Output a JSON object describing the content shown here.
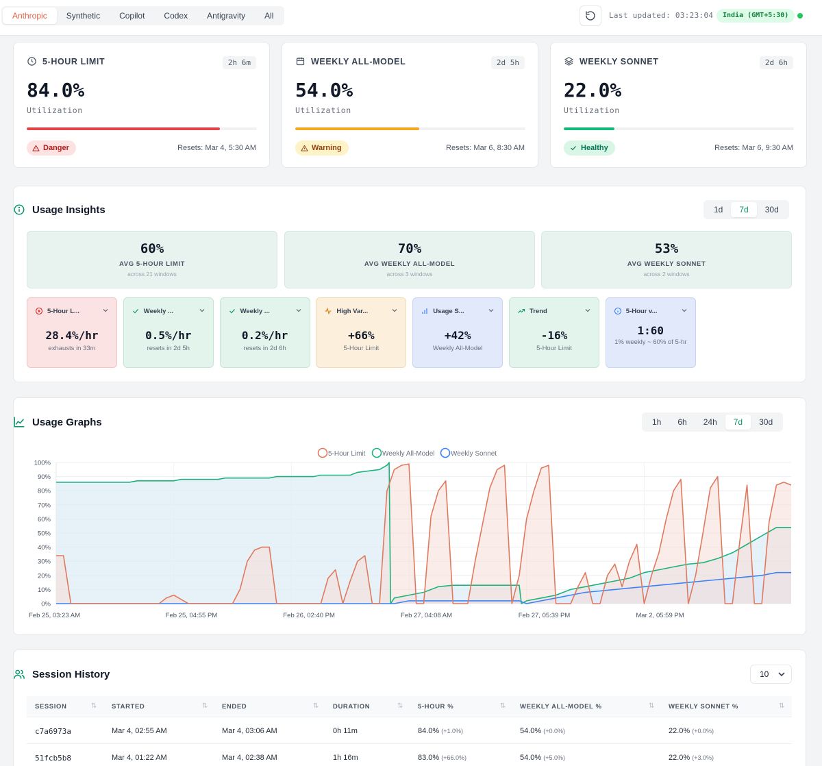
{
  "topbar": {
    "tabs": [
      {
        "label": "Anthropic",
        "active": true
      },
      {
        "label": "Synthetic",
        "active": false
      },
      {
        "label": "Copilot",
        "active": false
      },
      {
        "label": "Codex",
        "active": false
      },
      {
        "label": "Antigravity",
        "active": false
      },
      {
        "label": "All",
        "active": false
      }
    ],
    "last_updated": "Last updated: 03:23:04",
    "timezone": "India (GMT+5:30)",
    "status_color": "#22c55e"
  },
  "limits": [
    {
      "title": "5-HOUR LIMIT",
      "icon": "clock-icon",
      "badge": "2h 6m",
      "value": "84.0%",
      "label": "Utilization",
      "fill": 0.84,
      "color": "#e04545",
      "status": "Danger",
      "status_bg": "#fde2e2",
      "status_fg": "#b91c1c",
      "resets": "Resets: Mar 4, 5:30 AM"
    },
    {
      "title": "WEEKLY ALL-MODEL",
      "icon": "calendar-icon",
      "badge": "2d 5h",
      "value": "54.0%",
      "label": "Utilization",
      "fill": 0.54,
      "color": "#f5a623",
      "status": "Warning",
      "status_bg": "#fdf3c7",
      "status_fg": "#92400e",
      "resets": "Resets: Mar 6, 8:30 AM"
    },
    {
      "title": "WEEKLY SONNET",
      "icon": "layers-icon",
      "badge": "2d 6h",
      "value": "22.0%",
      "label": "Utilization",
      "fill": 0.22,
      "color": "#16b87a",
      "status": "Healthy",
      "status_bg": "#d9f5e6",
      "status_fg": "#047857",
      "resets": "Resets: Mar 6, 9:30 AM"
    }
  ],
  "insights": {
    "title": "Usage Insights",
    "ranges": [
      "1d",
      "7d",
      "30d"
    ],
    "active_range": "7d",
    "averages": [
      {
        "value": "60%",
        "label": "AVG 5-HOUR LIMIT",
        "sub": "across 21 windows"
      },
      {
        "value": "70%",
        "label": "AVG WEEKLY ALL-MODEL",
        "sub": "across 3 windows"
      },
      {
        "value": "53%",
        "label": "AVG WEEKLY SONNET",
        "sub": "across 2 windows"
      }
    ],
    "cards": [
      {
        "title": "5-Hour L...",
        "icon": "x-circle-icon",
        "value": "28.4%/hr",
        "sub": "exhausts in 33m",
        "bg": "#fbe3e3",
        "border": "#f3c4c4",
        "accent": "#dc2626"
      },
      {
        "title": "Weekly ...",
        "icon": "check-icon",
        "value": "0.5%/hr",
        "sub": "resets in 2d 5h",
        "bg": "#e3f4ec",
        "border": "#c4e6d5",
        "accent": "#059669"
      },
      {
        "title": "Weekly ...",
        "icon": "check-icon",
        "value": "0.2%/hr",
        "sub": "resets in 2d 6h",
        "bg": "#e3f4ec",
        "border": "#c4e6d5",
        "accent": "#059669"
      },
      {
        "title": "High Var...",
        "icon": "activity-icon",
        "value": "+66%",
        "sub": "5-Hour Limit",
        "bg": "#fcf0dc",
        "border": "#f1dbb4",
        "accent": "#d97706"
      },
      {
        "title": "Usage S...",
        "icon": "bar-chart-icon",
        "value": "+42%",
        "sub": "Weekly All-Model",
        "bg": "#e2e9fb",
        "border": "#c7d4f4",
        "accent": "#3b82f6"
      },
      {
        "title": "Trend",
        "icon": "trending-up-icon",
        "value": "-16%",
        "sub": "5-Hour Limit",
        "bg": "#e3f4ec",
        "border": "#c4e6d5",
        "accent": "#059669"
      },
      {
        "title": "5-Hour v...",
        "icon": "info-icon",
        "value": "1:60",
        "sub": "1% weekly ~ 60% of 5-hr",
        "bg": "#e2e9fb",
        "border": "#c7d4f4",
        "accent": "#3b82f6"
      }
    ]
  },
  "graphs": {
    "title": "Usage Graphs",
    "ranges": [
      "1h",
      "6h",
      "24h",
      "7d",
      "30d"
    ],
    "active_range": "7d"
  },
  "chart_data": {
    "type": "line",
    "ylim": [
      0,
      100
    ],
    "y_ticks": [
      "0%",
      "10%",
      "20%",
      "30%",
      "40%",
      "50%",
      "60%",
      "70%",
      "80%",
      "90%",
      "100%"
    ],
    "x_tick_labels": [
      "Feb 25, 03:23 AM",
      "Feb 25, 04:55 PM",
      "Feb 26, 02:40 PM",
      "Feb 27, 04:08 AM",
      "Feb 27, 05:39 PM",
      "Mar 2, 05:59 PM"
    ],
    "legend": [
      "5-Hour Limit",
      "Weekly All-Model",
      "Weekly Sonnet"
    ],
    "legend_placement": "top-center",
    "series": [
      {
        "name": "5-Hour Limit",
        "color": "#e07a5f",
        "fill": "#f8d4cb",
        "points": [
          [
            0,
            34
          ],
          [
            1,
            34
          ],
          [
            2,
            0
          ],
          [
            14,
            0
          ],
          [
            15,
            4
          ],
          [
            16,
            6
          ],
          [
            17,
            3
          ],
          [
            18,
            0
          ],
          [
            24,
            0
          ],
          [
            25,
            10
          ],
          [
            26,
            30
          ],
          [
            27,
            38
          ],
          [
            28,
            40
          ],
          [
            29,
            40
          ],
          [
            30,
            0
          ],
          [
            36,
            0
          ],
          [
            37,
            18
          ],
          [
            38,
            24
          ],
          [
            39,
            0
          ],
          [
            40,
            16
          ],
          [
            41,
            30
          ],
          [
            42,
            34
          ],
          [
            43,
            0
          ],
          [
            44,
            0
          ],
          [
            45,
            80
          ],
          [
            46,
            95
          ],
          [
            47,
            98
          ],
          [
            48,
            99
          ],
          [
            49,
            0
          ],
          [
            50,
            0
          ],
          [
            51,
            62
          ],
          [
            52,
            80
          ],
          [
            53,
            87
          ],
          [
            54,
            0
          ],
          [
            56,
            0
          ],
          [
            57,
            30
          ],
          [
            58,
            56
          ],
          [
            59,
            82
          ],
          [
            60,
            95
          ],
          [
            61,
            98
          ],
          [
            62,
            0
          ],
          [
            63,
            20
          ],
          [
            64,
            60
          ],
          [
            65,
            80
          ],
          [
            66,
            96
          ],
          [
            67,
            98
          ],
          [
            68,
            0
          ],
          [
            70,
            0
          ],
          [
            71,
            12
          ],
          [
            72,
            22
          ],
          [
            73,
            0
          ],
          [
            74,
            0
          ],
          [
            75,
            20
          ],
          [
            76,
            28
          ],
          [
            77,
            12
          ],
          [
            78,
            30
          ],
          [
            79,
            42
          ],
          [
            80,
            0
          ],
          [
            81,
            20
          ],
          [
            82,
            36
          ],
          [
            83,
            60
          ],
          [
            84,
            80
          ],
          [
            85,
            88
          ],
          [
            86,
            0
          ],
          [
            87,
            20
          ],
          [
            88,
            50
          ],
          [
            89,
            82
          ],
          [
            90,
            90
          ],
          [
            91,
            0
          ],
          [
            92,
            0
          ],
          [
            93,
            44
          ],
          [
            94,
            84
          ],
          [
            95,
            0
          ],
          [
            96,
            0
          ],
          [
            97,
            58
          ],
          [
            98,
            84
          ],
          [
            99,
            86
          ],
          [
            100,
            84
          ]
        ]
      },
      {
        "name": "Weekly All-Model",
        "color": "#1db37d",
        "fill": "#d6f0e4",
        "points": [
          [
            0,
            86
          ],
          [
            10,
            86
          ],
          [
            11,
            87
          ],
          [
            16,
            87
          ],
          [
            17,
            88
          ],
          [
            22,
            88
          ],
          [
            23,
            89
          ],
          [
            29,
            89
          ],
          [
            30,
            90
          ],
          [
            35,
            90
          ],
          [
            36,
            91
          ],
          [
            40,
            91
          ],
          [
            41,
            93
          ],
          [
            44,
            95
          ],
          [
            45,
            98
          ],
          [
            45.3,
            100
          ],
          [
            45.5,
            0
          ],
          [
            46,
            4
          ],
          [
            48,
            6
          ],
          [
            50,
            8
          ],
          [
            52,
            12
          ],
          [
            54,
            13
          ],
          [
            63,
            13
          ],
          [
            63.3,
            0
          ],
          [
            64,
            2
          ],
          [
            66,
            4
          ],
          [
            68,
            6
          ],
          [
            70,
            10
          ],
          [
            72,
            12
          ],
          [
            74,
            14
          ],
          [
            76,
            16
          ],
          [
            78,
            18
          ],
          [
            80,
            22
          ],
          [
            82,
            24
          ],
          [
            84,
            26
          ],
          [
            86,
            28
          ],
          [
            88,
            29
          ],
          [
            90,
            32
          ],
          [
            92,
            36
          ],
          [
            94,
            42
          ],
          [
            96,
            48
          ],
          [
            98,
            54
          ],
          [
            100,
            54
          ]
        ]
      },
      {
        "name": "Weekly Sonnet",
        "color": "#3b82f6",
        "fill": "#dbe7fb",
        "points": [
          [
            0,
            0
          ],
          [
            46,
            0
          ],
          [
            48,
            2
          ],
          [
            52,
            2
          ],
          [
            54,
            2
          ],
          [
            63,
            2
          ],
          [
            64,
            0
          ],
          [
            66,
            2
          ],
          [
            68,
            4
          ],
          [
            70,
            6
          ],
          [
            72,
            8
          ],
          [
            74,
            9
          ],
          [
            76,
            10
          ],
          [
            78,
            11
          ],
          [
            80,
            12
          ],
          [
            82,
            13
          ],
          [
            84,
            14
          ],
          [
            86,
            15
          ],
          [
            88,
            16
          ],
          [
            90,
            17
          ],
          [
            92,
            18
          ],
          [
            94,
            19
          ],
          [
            96,
            20
          ],
          [
            98,
            22
          ],
          [
            100,
            22
          ]
        ]
      }
    ],
    "x_label_positions": [
      0,
      16,
      32,
      48,
      64,
      80
    ]
  },
  "sessions": {
    "title": "Session History",
    "page_size": "10",
    "columns": [
      "SESSION",
      "STARTED",
      "ENDED",
      "DURATION",
      "5-HOUR %",
      "WEEKLY ALL-MODEL %",
      "WEEKLY SONNET %"
    ],
    "rows": [
      {
        "session": "c7a6973a",
        "started": "Mar 4, 02:55 AM",
        "ended": "Mar 4, 03:06 AM",
        "duration": "0h 11m",
        "five_hour": "84.0%",
        "five_hour_delta": "(+1.0%)",
        "weekly_all": "54.0%",
        "weekly_all_delta": "(+0.0%)",
        "weekly_sonnet": "22.0%",
        "weekly_sonnet_delta": "(+0.0%)"
      },
      {
        "session": "51fcb5b8",
        "started": "Mar 4, 01:22 AM",
        "ended": "Mar 4, 02:38 AM",
        "duration": "1h 16m",
        "five_hour": "83.0%",
        "five_hour_delta": "(+66.0%)",
        "weekly_all": "54.0%",
        "weekly_all_delta": "(+5.0%)",
        "weekly_sonnet": "22.0%",
        "weekly_sonnet_delta": "(+3.0%)"
      }
    ]
  }
}
